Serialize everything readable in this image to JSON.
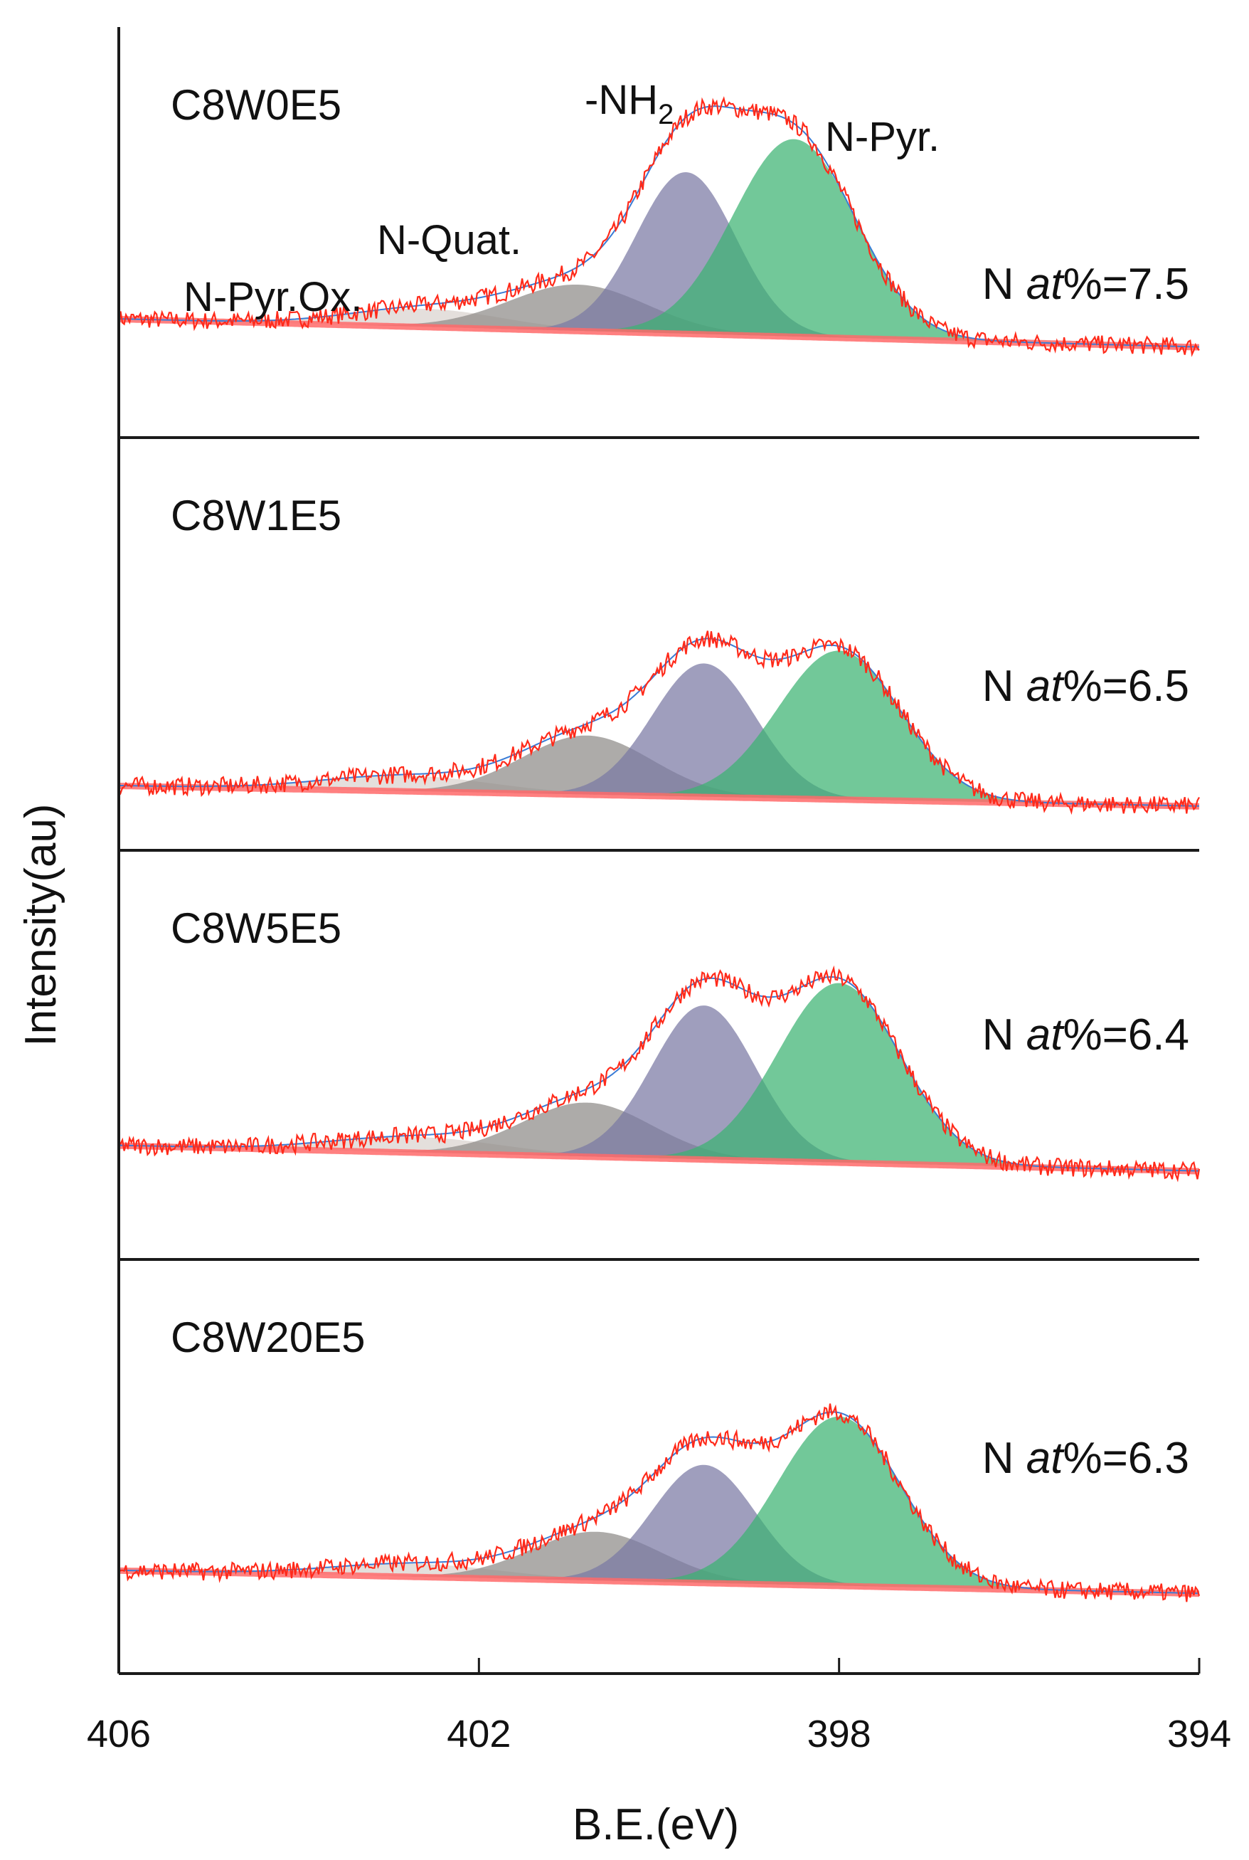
{
  "chart_data": {
    "type": "line",
    "title": "",
    "xlabel": "B.E.(eV)",
    "ylabel": "Intensity(au)",
    "xlim": [
      406,
      394
    ],
    "x_reversed": true,
    "xticks": [
      406,
      402,
      398,
      394
    ],
    "components": [
      {
        "name": "N-Pyr.Ox.",
        "label": "N-Pyr.Ox.",
        "color": "#d9d3ce"
      },
      {
        "name": "N-Quat.",
        "label": "N-Quat.",
        "color": "#8e8a88"
      },
      {
        "name": "-NH2",
        "label": "-NH",
        "subscript": "2",
        "color": "#7a79a3"
      },
      {
        "name": "N-Pyr.",
        "label": "N-Pyr.",
        "color": "#3cb371"
      }
    ],
    "colors": {
      "raw": "#ff2a1a",
      "envelope": "#3a7bd5",
      "background": "#ff6a6a",
      "frame": "#1a1a1a"
    },
    "panels": [
      {
        "name": "C8W0E5",
        "n_prefix": "N ",
        "n_italic": "at",
        "n_suffix": "%=7.5",
        "n_value": 7.5,
        "baseline": [
          0.2,
          0.09
        ],
        "peaks": [
          {
            "component": "N-Pyr.Ox.",
            "center": 402.6,
            "height": 0.07,
            "fwhm": 2.0
          },
          {
            "component": "N-Quat.",
            "center": 400.9,
            "height": 0.18,
            "fwhm": 1.8
          },
          {
            "component": "-NH2",
            "center": 399.7,
            "height": 0.63,
            "fwhm": 1.3
          },
          {
            "component": "N-Pyr.",
            "center": 398.5,
            "height": 0.77,
            "fwhm": 1.6
          }
        ]
      },
      {
        "name": "C8W1E5",
        "n_prefix": "N ",
        "n_italic": "at",
        "n_suffix": "%=6.5",
        "n_value": 6.5,
        "baseline": [
          0.1,
          0.02
        ],
        "peaks": [
          {
            "component": "N-Pyr.Ox.",
            "center": 402.8,
            "height": 0.06,
            "fwhm": 2.2
          },
          {
            "component": "N-Quat.",
            "center": 400.8,
            "height": 0.23,
            "fwhm": 1.7
          },
          {
            "component": "-NH2",
            "center": 399.5,
            "height": 0.52,
            "fwhm": 1.35
          },
          {
            "component": "N-Pyr.",
            "center": 398.0,
            "height": 0.58,
            "fwhm": 1.6
          }
        ]
      },
      {
        "name": "C8W5E5",
        "n_prefix": "N ",
        "n_italic": "at",
        "n_suffix": "%=6.4",
        "n_value": 6.4,
        "baseline": [
          0.14,
          0.04
        ],
        "peaks": [
          {
            "component": "N-Pyr.Ox.",
            "center": 402.7,
            "height": 0.06,
            "fwhm": 2.2
          },
          {
            "component": "N-Quat.",
            "center": 400.8,
            "height": 0.21,
            "fwhm": 1.7
          },
          {
            "component": "-NH2",
            "center": 399.5,
            "height": 0.6,
            "fwhm": 1.35
          },
          {
            "component": "N-Pyr.",
            "center": 398.0,
            "height": 0.7,
            "fwhm": 1.6
          }
        ]
      },
      {
        "name": "C8W20E5",
        "n_prefix": "N ",
        "n_italic": "at",
        "n_suffix": "%=6.3",
        "n_value": 6.3,
        "baseline": [
          0.12,
          0.03
        ],
        "peaks": [
          {
            "component": "N-Pyr.Ox.",
            "center": 402.7,
            "height": 0.05,
            "fwhm": 2.2
          },
          {
            "component": "N-Quat.",
            "center": 400.7,
            "height": 0.19,
            "fwhm": 1.7
          },
          {
            "component": "-NH2",
            "center": 399.5,
            "height": 0.46,
            "fwhm": 1.35
          },
          {
            "component": "N-Pyr.",
            "center": 398.0,
            "height": 0.66,
            "fwhm": 1.6
          }
        ]
      }
    ]
  }
}
